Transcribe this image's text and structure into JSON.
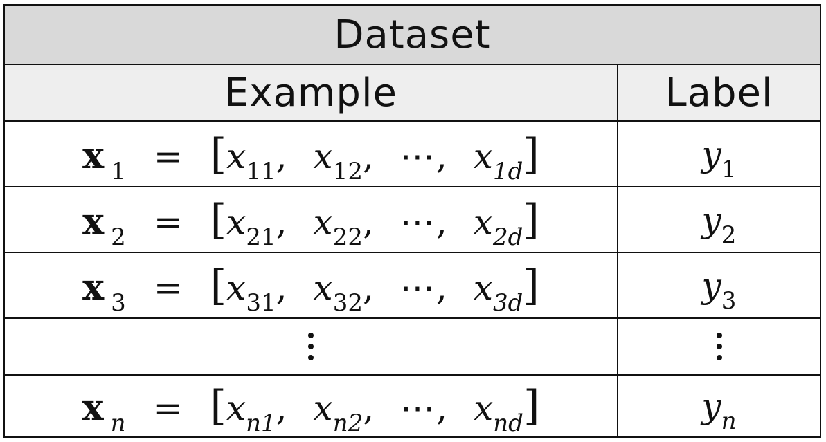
{
  "title": "Dataset",
  "headers": {
    "example": "Example",
    "label": "Label"
  },
  "rows": [
    {
      "vec": "x",
      "idx": "1",
      "elems": [
        {
          "b": "x",
          "s": "11"
        },
        {
          "b": "x",
          "s": "12"
        },
        {
          "b": "x",
          "s": "1d"
        }
      ],
      "label": {
        "b": "y",
        "s": "1"
      }
    },
    {
      "vec": "x",
      "idx": "2",
      "elems": [
        {
          "b": "x",
          "s": "21"
        },
        {
          "b": "x",
          "s": "22"
        },
        {
          "b": "x",
          "s": "2d"
        }
      ],
      "label": {
        "b": "y",
        "s": "2"
      }
    },
    {
      "vec": "x",
      "idx": "3",
      "elems": [
        {
          "b": "x",
          "s": "31"
        },
        {
          "b": "x",
          "s": "32"
        },
        {
          "b": "x",
          "s": "3d"
        }
      ],
      "label": {
        "b": "y",
        "s": "3"
      }
    }
  ],
  "last_row": {
    "vec": "x",
    "idx": "n",
    "elems": [
      {
        "b": "x",
        "s": "n1"
      },
      {
        "b": "x",
        "s": "n2"
      },
      {
        "b": "x",
        "s": "nd"
      }
    ],
    "label": {
      "b": "y",
      "s": "n"
    }
  },
  "symbols": {
    "equals": "=",
    "open_bracket": "[",
    "close_bracket": "]",
    "comma": ",",
    "ellipsis": "⋯"
  }
}
